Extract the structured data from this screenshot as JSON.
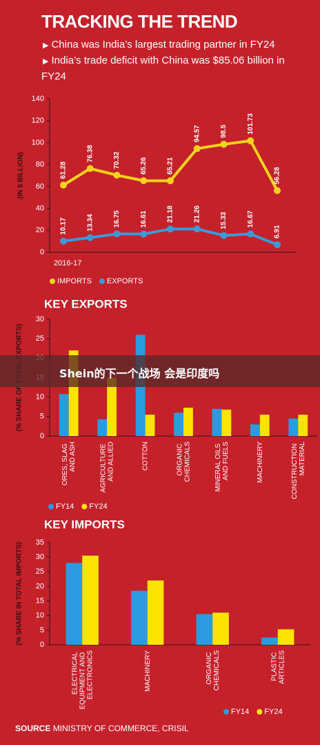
{
  "header": {
    "title": "TRACKING THE TREND",
    "points": [
      "China was India’s largest trading partner in FY24",
      "India’s trade deficit with China was $85.06 billion in FY24"
    ]
  },
  "banner": "Shein的下一个战场 会是印度吗",
  "source": {
    "label": "SOURCE",
    "text": "MINISTRY OF COMMERCE, CRISIL"
  },
  "chart_data": [
    {
      "type": "line",
      "ylabel": "(IN $ BILLION)",
      "categories": [
        "2016-17",
        null,
        null,
        null,
        null,
        null,
        null,
        null,
        null
      ],
      "series": [
        {
          "name": "IMPORTS",
          "color": "#f5d31a",
          "values": [
            61.28,
            76.38,
            70.32,
            65.26,
            65.21,
            94.57,
            98.5,
            101.73,
            56.28
          ]
        },
        {
          "name": "EXPORTS",
          "color": "#3b9ad8",
          "values": [
            10.17,
            13.34,
            16.75,
            16.61,
            21.18,
            21.26,
            15.33,
            16.67,
            6.91
          ]
        }
      ],
      "ylim": [
        0,
        140
      ],
      "yticks": [
        0,
        20,
        40,
        60,
        80,
        100,
        120,
        140
      ],
      "grid": false
    },
    {
      "type": "bar",
      "title": "KEY EXPORTS",
      "ylabel": "(% SHARE OF TOTAL EXPORTS)",
      "categories": [
        "ORES, SLAG AND ASH",
        "AGRICULTURE AND ALLIED",
        "COTTON",
        "ORGANIC CHEMICALS",
        "MINERAL OILS AND FUELS",
        "MACHINERY",
        "CONSTRUCTION MATERIAL"
      ],
      "series": [
        {
          "name": "FY14",
          "color": "#2a9be0",
          "values": [
            10.8,
            4.3,
            26,
            6,
            7,
            3,
            4.5
          ]
        },
        {
          "name": "FY24",
          "color": "#fde400",
          "values": [
            22,
            15,
            5.5,
            7.3,
            6.8,
            5.5,
            5.5
          ]
        }
      ],
      "ylim": [
        0,
        30
      ],
      "yticks": [
        0,
        5,
        10,
        15,
        20,
        25,
        30
      ]
    },
    {
      "type": "bar",
      "title": "KEY IMPORTS",
      "ylabel": "(% SHARE IN TOTAL IMPORTS)",
      "categories": [
        "ELECTRICAL EQUIPMENT AND ELECTRONICS",
        "MACHINERY",
        "ORGANIC CHEMICALS",
        "PLASTIC ARTICLES"
      ],
      "series": [
        {
          "name": "FY14",
          "color": "#2a9be0",
          "values": [
            28,
            18.5,
            10.5,
            2.5
          ]
        },
        {
          "name": "FY24",
          "color": "#fde400",
          "values": [
            30.5,
            22,
            11,
            5.3
          ]
        }
      ],
      "ylim": [
        0,
        35
      ],
      "yticks": [
        0,
        5,
        10,
        15,
        20,
        25,
        30,
        35
      ]
    }
  ]
}
